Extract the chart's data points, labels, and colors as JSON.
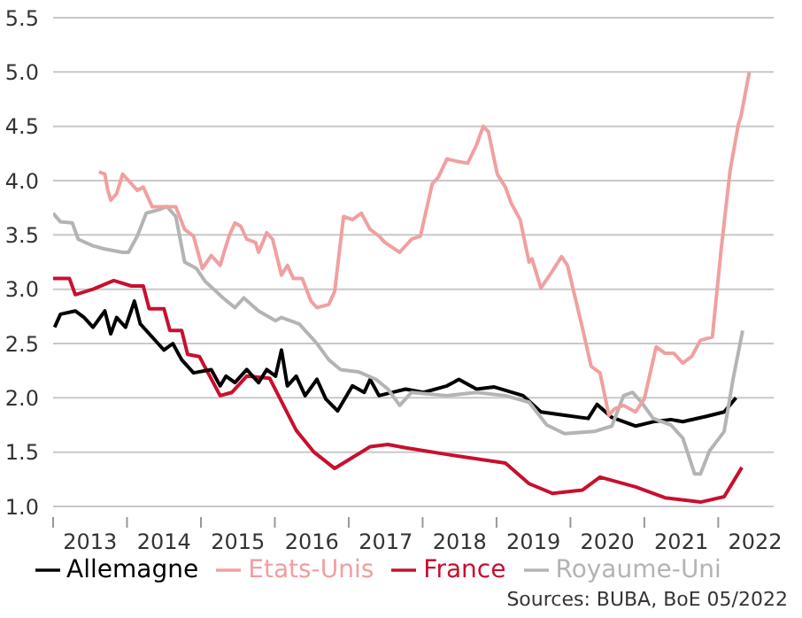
{
  "chart_data": {
    "type": "line",
    "xlim": [
      2013,
      2022.75
    ],
    "xticks": [
      {
        "value": 2013,
        "label": null
      },
      {
        "value": 2013.5,
        "label": "2013"
      },
      {
        "value": 2014,
        "label": null
      },
      {
        "value": 2014.5,
        "label": "2014"
      },
      {
        "value": 2015,
        "label": null
      },
      {
        "value": 2015.5,
        "label": "2015"
      },
      {
        "value": 2016,
        "label": null
      },
      {
        "value": 2016.5,
        "label": "2016"
      },
      {
        "value": 2017,
        "label": null
      },
      {
        "value": 2017.5,
        "label": "2017"
      },
      {
        "value": 2018,
        "label": null
      },
      {
        "value": 2018.5,
        "label": "2018"
      },
      {
        "value": 2019,
        "label": null
      },
      {
        "value": 2019.5,
        "label": "2019"
      },
      {
        "value": 2020,
        "label": null
      },
      {
        "value": 2020.5,
        "label": "2020"
      },
      {
        "value": 2021,
        "label": null
      },
      {
        "value": 2021.5,
        "label": "2021"
      },
      {
        "value": 2022,
        "label": null
      },
      {
        "value": 2022.5,
        "label": "2022"
      }
    ],
    "ylim": [
      1,
      5.5
    ],
    "yticks": [
      {
        "value": 1,
        "label": "1.0"
      },
      {
        "value": 1.5,
        "label": "1.5"
      },
      {
        "value": 2,
        "label": "2.0"
      },
      {
        "value": 2.5,
        "label": "2.5"
      },
      {
        "value": 3,
        "label": "3.0"
      },
      {
        "value": 3.5,
        "label": "3.5"
      },
      {
        "value": 4,
        "label": "4.0"
      },
      {
        "value": 4.5,
        "label": "4.5"
      },
      {
        "value": 5,
        "label": "5.0"
      },
      {
        "value": 5.5,
        "label": "5.5"
      }
    ],
    "grid": "y",
    "legend": "bottom",
    "marker": "none",
    "line_style": "solid",
    "annotations": [
      "Sources: BUBA, BoE 05/2022"
    ],
    "series": [
      {
        "name": "France",
        "color": "#c8102e",
        "x": [
          2013.0,
          2013.22,
          2013.3,
          2013.54,
          2013.82,
          2014.06,
          2014.22,
          2014.3,
          2014.5,
          2014.58,
          2014.74,
          2014.82,
          2014.98,
          2015.26,
          2015.42,
          2015.62,
          2015.93,
          2016.05,
          2016.29,
          2016.53,
          2016.81,
          2017.05,
          2017.29,
          2017.53,
          2017.77,
          2018.32,
          2019.12,
          2019.44,
          2019.76,
          2020.16,
          2020.4,
          2020.88,
          2021.28,
          2021.76,
          2022.08,
          2022.32
        ],
        "values": [
          3.1,
          3.1,
          2.95,
          3.0,
          3.08,
          3.03,
          3.03,
          2.82,
          2.82,
          2.62,
          2.62,
          2.4,
          2.38,
          2.02,
          2.05,
          2.2,
          2.18,
          2.02,
          1.7,
          1.5,
          1.35,
          1.45,
          1.55,
          1.57,
          1.54,
          1.48,
          1.4,
          1.21,
          1.12,
          1.15,
          1.27,
          1.18,
          1.08,
          1.04,
          1.09,
          1.36
        ]
      },
      {
        "name": "Allemagne",
        "color": "#000000",
        "x": [
          2013.02,
          2013.1,
          2013.3,
          2013.42,
          2013.54,
          2013.7,
          2013.78,
          2013.86,
          2013.98,
          2014.1,
          2014.18,
          2014.42,
          2014.5,
          2014.62,
          2014.74,
          2014.9,
          2015.14,
          2015.26,
          2015.34,
          2015.46,
          2015.62,
          2015.78,
          2015.89,
          2016.01,
          2016.09,
          2016.17,
          2016.29,
          2016.41,
          2016.57,
          2016.69,
          2016.85,
          2017.05,
          2017.21,
          2017.29,
          2017.41,
          2017.53,
          2017.77,
          2018.01,
          2018.33,
          2018.49,
          2018.73,
          2018.97,
          2019.36,
          2019.6,
          2019.92,
          2020.24,
          2020.36,
          2020.56,
          2020.88,
          2021.12,
          2021.36,
          2021.52,
          2021.84,
          2022.08,
          2022.24
        ],
        "values": [
          2.65,
          2.77,
          2.8,
          2.74,
          2.65,
          2.8,
          2.59,
          2.74,
          2.65,
          2.89,
          2.68,
          2.5,
          2.44,
          2.5,
          2.35,
          2.23,
          2.26,
          2.11,
          2.2,
          2.14,
          2.26,
          2.14,
          2.26,
          2.2,
          2.44,
          2.11,
          2.2,
          2.02,
          2.17,
          1.99,
          1.88,
          2.11,
          2.05,
          2.17,
          2.02,
          2.04,
          2.08,
          2.05,
          2.11,
          2.17,
          2.08,
          2.1,
          2.02,
          1.87,
          1.84,
          1.81,
          1.94,
          1.82,
          1.74,
          1.78,
          1.8,
          1.78,
          1.83,
          1.87,
          2.0
        ]
      },
      {
        "name": "Royaume-Uni",
        "color": "#b4b4b4",
        "x": [
          2013.0,
          2013.1,
          2013.26,
          2013.34,
          2013.54,
          2013.7,
          2013.94,
          2014.02,
          2014.14,
          2014.26,
          2014.42,
          2014.54,
          2014.66,
          2014.78,
          2014.94,
          2015.06,
          2015.3,
          2015.46,
          2015.58,
          2015.78,
          2016.01,
          2016.09,
          2016.33,
          2016.57,
          2016.73,
          2016.89,
          2017.13,
          2017.37,
          2017.53,
          2017.69,
          2017.85,
          2018.33,
          2018.73,
          2019.12,
          2019.44,
          2019.68,
          2019.92,
          2020.32,
          2020.56,
          2020.72,
          2020.84,
          2020.96,
          2021.12,
          2021.36,
          2021.52,
          2021.68,
          2021.76,
          2021.88,
          2022.08,
          2022.2,
          2022.33
        ],
        "values": [
          3.7,
          3.62,
          3.61,
          3.46,
          3.4,
          3.37,
          3.34,
          3.34,
          3.49,
          3.7,
          3.73,
          3.76,
          3.67,
          3.25,
          3.19,
          3.07,
          2.92,
          2.83,
          2.92,
          2.8,
          2.71,
          2.74,
          2.68,
          2.5,
          2.35,
          2.26,
          2.24,
          2.17,
          2.08,
          1.93,
          2.05,
          2.02,
          2.05,
          2.02,
          1.96,
          1.75,
          1.67,
          1.69,
          1.74,
          2.02,
          2.05,
          1.96,
          1.81,
          1.75,
          1.63,
          1.3,
          1.3,
          1.51,
          1.69,
          2.17,
          2.62
        ]
      },
      {
        "name": "Etats-Unis",
        "color": "#f0a0a0",
        "x": [
          2013.62,
          2013.7,
          2013.74,
          2013.78,
          2013.86,
          2013.94,
          2014.06,
          2014.14,
          2014.22,
          2014.34,
          2014.5,
          2014.66,
          2014.78,
          2014.9,
          2015.02,
          2015.14,
          2015.26,
          2015.38,
          2015.46,
          2015.54,
          2015.62,
          2015.74,
          2015.78,
          2015.89,
          2015.97,
          2016.09,
          2016.17,
          2016.25,
          2016.37,
          2016.49,
          2016.57,
          2016.73,
          2016.81,
          2016.93,
          2017.05,
          2017.17,
          2017.29,
          2017.41,
          2017.49,
          2017.69,
          2017.85,
          2017.97,
          2018.13,
          2018.21,
          2018.33,
          2018.45,
          2018.61,
          2018.73,
          2018.82,
          2018.89,
          2019.01,
          2019.12,
          2019.2,
          2019.32,
          2019.44,
          2019.48,
          2019.6,
          2019.72,
          2019.88,
          2019.96,
          2020.16,
          2020.28,
          2020.4,
          2020.52,
          2020.6,
          2020.72,
          2020.88,
          2021.0,
          2021.16,
          2021.28,
          2021.4,
          2021.52,
          2021.64,
          2021.76,
          2021.92,
          2022.04,
          2022.16,
          2022.27,
          2022.31,
          2022.42
        ],
        "values": [
          4.08,
          4.06,
          3.91,
          3.82,
          3.88,
          4.06,
          3.97,
          3.91,
          3.94,
          3.76,
          3.76,
          3.76,
          3.55,
          3.49,
          3.19,
          3.31,
          3.22,
          3.49,
          3.61,
          3.58,
          3.46,
          3.43,
          3.34,
          3.52,
          3.46,
          3.13,
          3.22,
          3.1,
          3.1,
          2.89,
          2.83,
          2.86,
          2.98,
          3.67,
          3.64,
          3.7,
          3.55,
          3.49,
          3.43,
          3.34,
          3.46,
          3.49,
          3.97,
          4.03,
          4.2,
          4.18,
          4.16,
          4.33,
          4.5,
          4.45,
          4.06,
          3.94,
          3.79,
          3.64,
          3.25,
          3.28,
          3.01,
          3.13,
          3.3,
          3.22,
          2.65,
          2.29,
          2.23,
          1.84,
          1.9,
          1.93,
          1.87,
          1.99,
          2.47,
          2.41,
          2.41,
          2.32,
          2.38,
          2.53,
          2.56,
          3.37,
          4.09,
          4.51,
          4.6,
          5.0
        ]
      }
    ]
  }
}
